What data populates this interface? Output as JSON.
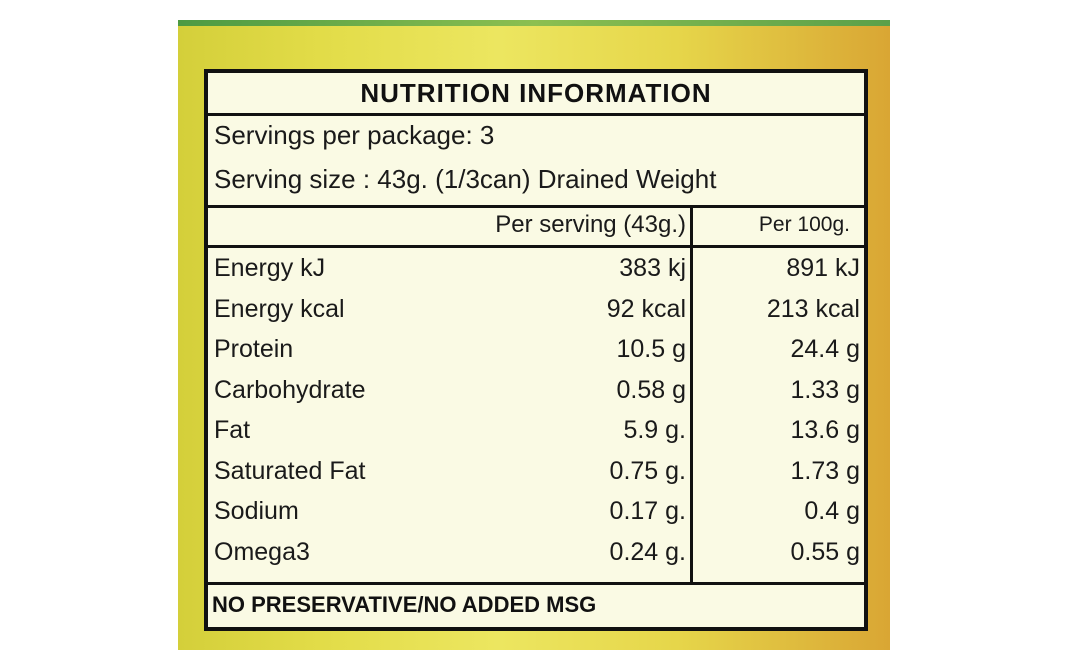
{
  "label": {
    "title": "NUTRITION  INFORMATION",
    "servings_per_package": "Servings per package: 3",
    "serving_size": "Serving size : 43g. (1/3can) Drained Weight",
    "columns": {
      "per_serving": "Per serving (43g.)",
      "per_100g": "Per 100g."
    },
    "rows": [
      {
        "name": "Energy kJ",
        "per_serving": "383 kj",
        "per_100g": "891 kJ"
      },
      {
        "name": "Energy kcal",
        "per_serving": "92 kcal",
        "per_100g": "213 kcal"
      },
      {
        "name": "Protein",
        "per_serving": "10.5 g",
        "per_100g": "24.4 g"
      },
      {
        "name": "Carbohydrate",
        "per_serving": "0.58 g",
        "per_100g": "1.33 g"
      },
      {
        "name": "Fat",
        "per_serving": "5.9 g.",
        "per_100g": "13.6 g"
      },
      {
        "name": "Saturated Fat",
        "per_serving": "0.75 g.",
        "per_100g": "1.73 g"
      },
      {
        "name": "Sodium",
        "per_serving": "0.17 g.",
        "per_100g": "0.4 g"
      },
      {
        "name": "Omega3",
        "per_serving": "0.24 g.",
        "per_100g": "0.55 g"
      }
    ],
    "footer": "NO PRESERVATIVE/NO ADDED MSG"
  }
}
